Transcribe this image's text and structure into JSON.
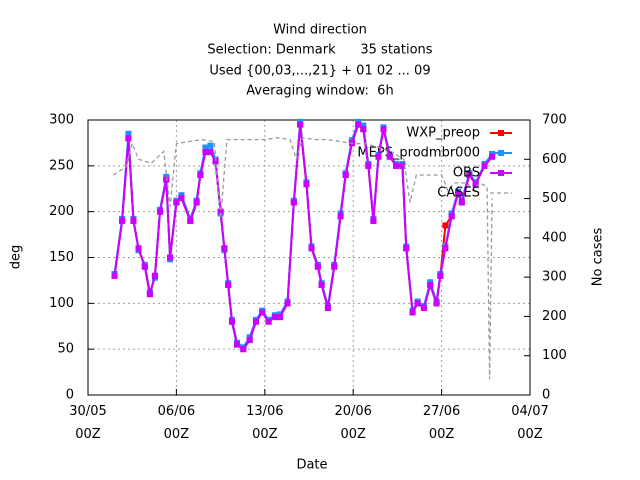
{
  "chart_data": {
    "type": "line",
    "title": "Wind direction",
    "subtitle": [
      "Selection: Denmark      35 stations",
      "Used {00,03,...,21} + 01 02 ... 09",
      "Averaging window:  6h"
    ],
    "xlabel": "Date",
    "ylabel": "deg",
    "y2label": "No cases",
    "xlim": [
      0,
      35
    ],
    "xticks": [
      {
        "value": 0,
        "label": "30/05\n00Z"
      },
      {
        "value": 7,
        "label": "06/06\n00Z"
      },
      {
        "value": 14,
        "label": "13/06\n00Z"
      },
      {
        "value": 21,
        "label": "20/06\n00Z"
      },
      {
        "value": 28,
        "label": "27/06\n00Z"
      },
      {
        "value": 35,
        "label": "04/07\n00Z"
      }
    ],
    "ylim": [
      0,
      300
    ],
    "yticks": [
      0,
      50,
      100,
      150,
      200,
      250,
      300
    ],
    "y2lim": [
      0,
      700
    ],
    "y2ticks": [
      0,
      100,
      200,
      300,
      400,
      500,
      600,
      700
    ],
    "grid": true,
    "legend": "top-right",
    "x": [
      2.1,
      2.7,
      3.2,
      3.6,
      4.0,
      4.5,
      4.9,
      5.3,
      5.7,
      6.2,
      6.5,
      7.0,
      7.4,
      8.1,
      8.6,
      8.9,
      9.3,
      9.7,
      10.1,
      10.5,
      10.8,
      11.1,
      11.4,
      11.8,
      12.3,
      12.8,
      13.3,
      13.8,
      14.3,
      14.8,
      15.2,
      15.8,
      16.3,
      16.8,
      17.3,
      17.7,
      18.2,
      18.5,
      19.0,
      19.5,
      20.0,
      20.4,
      20.9,
      21.4,
      21.8,
      22.2,
      22.6,
      23.0,
      23.4,
      23.9,
      24.4,
      24.9,
      25.2,
      25.7,
      26.1,
      26.6,
      27.1,
      27.6,
      27.9,
      28.3,
      28.8,
      29.3,
      29.6,
      30.2,
      30.7,
      31.4,
      32.0
    ],
    "series": [
      {
        "name": "WXP_preop",
        "color": "#ff0000",
        "values": [
          130,
          190,
          280,
          190,
          160,
          140,
          110,
          130,
          200,
          235,
          150,
          210,
          215,
          190,
          210,
          240,
          265,
          265,
          255,
          200,
          160,
          120,
          80,
          55,
          50,
          60,
          80,
          90,
          80,
          85,
          85,
          100,
          210,
          295,
          230,
          160,
          140,
          120,
          95,
          140,
          195,
          240,
          275,
          295,
          290,
          250,
          190,
          260,
          290,
          260,
          250,
          250,
          160,
          90,
          100,
          95,
          120,
          100,
          130,
          185,
          195,
          220,
          210,
          240,
          230,
          250,
          260
        ]
      },
      {
        "name": "MEPS_prodmbr000",
        "color": "#1e90ff",
        "values": [
          132,
          192,
          285,
          192,
          158,
          142,
          112,
          128,
          202,
          238,
          148,
          212,
          218,
          192,
          212,
          242,
          270,
          272,
          257,
          198,
          158,
          122,
          82,
          57,
          52,
          63,
          82,
          92,
          82,
          87,
          88,
          102,
          212,
          298,
          232,
          162,
          142,
          122,
          97,
          142,
          198,
          242,
          278,
          298,
          294,
          252,
          192,
          262,
          292,
          262,
          252,
          252,
          162,
          92,
          102,
          97,
          123,
          102,
          132,
          162,
          198,
          222,
          212,
          242,
          232,
          252,
          263
        ]
      },
      {
        "name": "OBS",
        "color": "#cc00ff",
        "values": [
          130,
          190,
          280,
          190,
          160,
          140,
          110,
          130,
          200,
          235,
          150,
          210,
          215,
          190,
          210,
          240,
          265,
          265,
          255,
          200,
          160,
          120,
          80,
          55,
          50,
          60,
          80,
          90,
          80,
          85,
          85,
          100,
          210,
          295,
          230,
          160,
          140,
          120,
          95,
          140,
          195,
          240,
          275,
          295,
          290,
          250,
          190,
          260,
          290,
          260,
          250,
          250,
          160,
          90,
          100,
          95,
          120,
          100,
          130,
          160,
          195,
          220,
          210,
          240,
          230,
          250,
          260
        ]
      },
      {
        "name": "CASES",
        "color": "#999999",
        "axis": "y2",
        "x": [
          2.0,
          3.0,
          3.5,
          4.0,
          5.0,
          6.0,
          6.5,
          7.0,
          8.0,
          9.0,
          10.0,
          10.5,
          11.0,
          12.0,
          13.0,
          14.0,
          15.0,
          16.0,
          16.5,
          17.0,
          18.0,
          19.0,
          20.0,
          21.0,
          22.0,
          23.0,
          24.0,
          25.0,
          25.5,
          26.0,
          27.0,
          28.0,
          28.5,
          29.0,
          30.0,
          30.5,
          31.0,
          31.6,
          31.8,
          32.0
        ],
        "values": [
          560,
          580,
          640,
          600,
          590,
          620,
          480,
          640,
          645,
          650,
          645,
          450,
          650,
          650,
          650,
          650,
          655,
          650,
          600,
          655,
          650,
          650,
          645,
          640,
          640,
          630,
          620,
          600,
          490,
          560,
          560,
          560,
          520,
          540,
          540,
          520,
          540,
          530,
          40,
          500
        ]
      }
    ]
  }
}
